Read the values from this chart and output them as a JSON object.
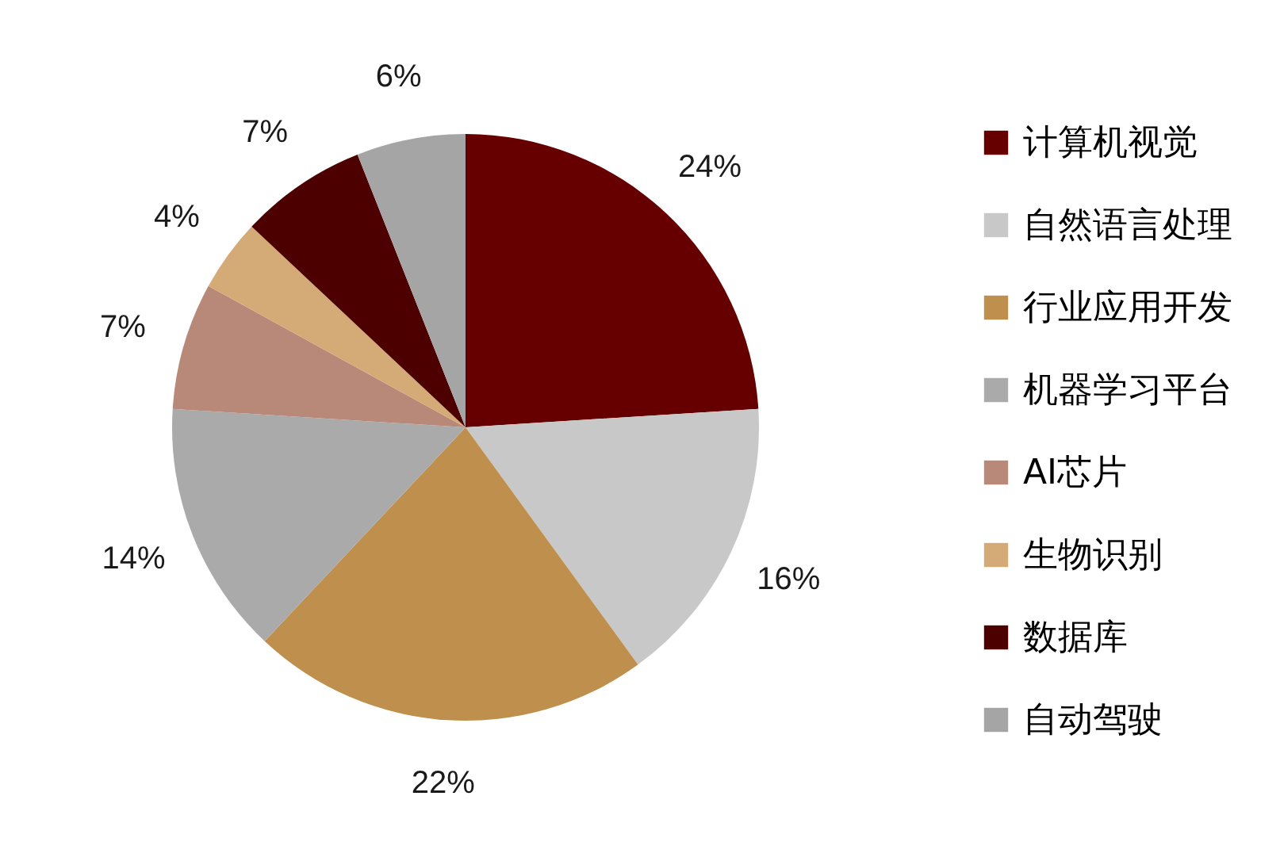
{
  "chart_data": {
    "type": "pie",
    "categories": [
      "计算机视觉",
      "自然语言处理",
      "行业应用开发",
      "机器学习平台",
      "AI芯片",
      "生物识别",
      "数据库",
      "自动驾驶"
    ],
    "values": [
      24,
      16,
      22,
      14,
      7,
      4,
      7,
      6
    ],
    "value_labels": [
      "24%",
      "16%",
      "22%",
      "14%",
      "7%",
      "4%",
      "7%",
      "6%"
    ],
    "colors": [
      "#660000",
      "#c8c8c8",
      "#bf8f4e",
      "#aaaaaa",
      "#b88878",
      "#d4aa76",
      "#4d0000",
      "#a5a5a5"
    ],
    "legend": "right"
  }
}
